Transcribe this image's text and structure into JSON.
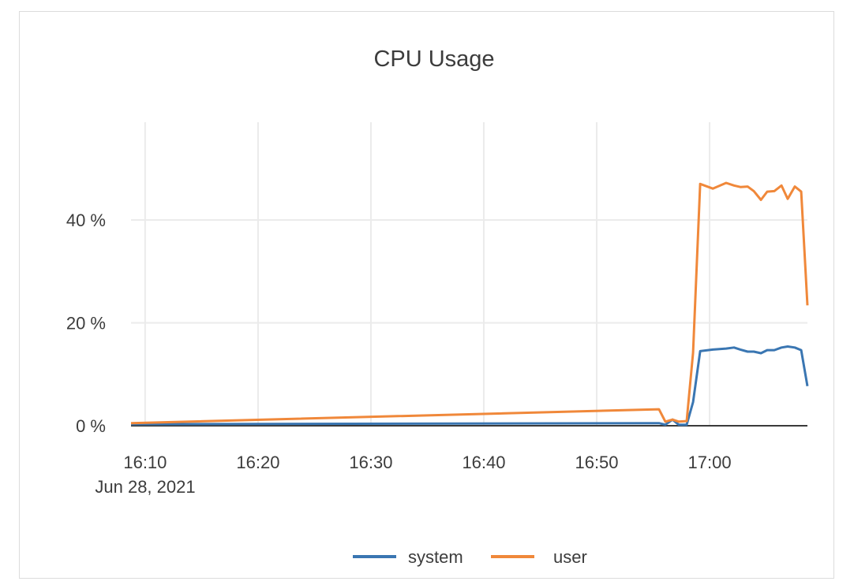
{
  "chart_data": {
    "type": "line",
    "title": "CPU Usage",
    "xlabel": "",
    "ylabel": "",
    "date_label": "Jun 28, 2021",
    "x_ticks": [
      "16:10",
      "16:20",
      "16:30",
      "16:40",
      "16:50",
      "17:00"
    ],
    "y_ticks": [
      0,
      20,
      40
    ],
    "y_tick_labels": [
      "0 %",
      "20 %",
      "40 %"
    ],
    "xlim": [
      "16:08:45",
      "17:08:40"
    ],
    "ylim": [
      0,
      59
    ],
    "grid": true,
    "legend_position": "bottom",
    "series": [
      {
        "name": "system",
        "color": "#3a76b2",
        "points": [
          [
            "16:08:45",
            0.3
          ],
          [
            "16:55:31",
            0.5
          ],
          [
            "16:56:05",
            0.2
          ],
          [
            "16:56:43",
            1.2
          ],
          [
            "16:57:16",
            0.2
          ],
          [
            "16:57:58",
            0.2
          ],
          [
            "16:58:32",
            4.6
          ],
          [
            "16:59:10",
            14.5
          ],
          [
            "17:00:17",
            14.8
          ],
          [
            "17:01:28",
            15.0
          ],
          [
            "17:02:10",
            15.2
          ],
          [
            "17:02:44",
            14.8
          ],
          [
            "17:03:22",
            14.4
          ],
          [
            "17:03:55",
            14.4
          ],
          [
            "17:04:33",
            14.1
          ],
          [
            "17:05:06",
            14.7
          ],
          [
            "17:05:44",
            14.7
          ],
          [
            "17:06:22",
            15.2
          ],
          [
            "17:06:55",
            15.4
          ],
          [
            "17:07:33",
            15.2
          ],
          [
            "17:08:07",
            14.7
          ],
          [
            "17:08:40",
            7.7
          ]
        ]
      },
      {
        "name": "user",
        "color": "#f0883a",
        "points": [
          [
            "16:08:45",
            0.5
          ],
          [
            "16:55:31",
            3.2
          ],
          [
            "16:56:05",
            0.8
          ],
          [
            "16:56:43",
            1.2
          ],
          [
            "16:57:16",
            0.8
          ],
          [
            "16:57:58",
            0.9
          ],
          [
            "16:58:32",
            14.2
          ],
          [
            "16:59:10",
            47.0
          ],
          [
            "17:00:17",
            46.1
          ],
          [
            "17:01:28",
            47.2
          ],
          [
            "17:02:10",
            46.7
          ],
          [
            "17:02:44",
            46.4
          ],
          [
            "17:03:22",
            46.5
          ],
          [
            "17:03:55",
            45.6
          ],
          [
            "17:04:33",
            43.9
          ],
          [
            "17:05:06",
            45.5
          ],
          [
            "17:05:44",
            45.6
          ],
          [
            "17:06:22",
            46.7
          ],
          [
            "17:06:55",
            44.1
          ],
          [
            "17:07:33",
            46.5
          ],
          [
            "17:08:07",
            45.5
          ],
          [
            "17:08:40",
            23.4
          ]
        ]
      }
    ]
  }
}
